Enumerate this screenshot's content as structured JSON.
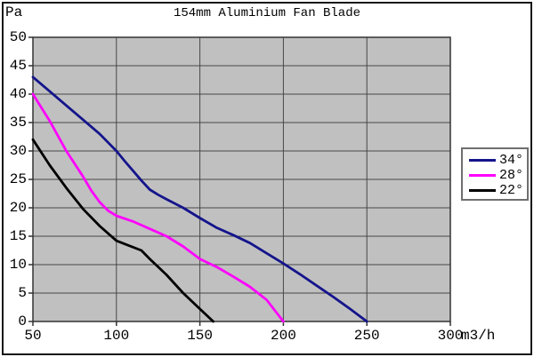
{
  "title": "154mm Aluminium Fan Blade",
  "colors": {
    "plot_background": "#c0c0c0",
    "gridline": "#474747",
    "plot_border": "#333333",
    "legend_border": "#6f6f6f",
    "frame_border": "#151515"
  },
  "chart_data": {
    "type": "line",
    "title": "154mm Aluminium Fan Blade",
    "xlabel": "m3/h",
    "ylabel": "Pa",
    "xlim": [
      50,
      300
    ],
    "ylim": [
      0,
      50
    ],
    "x_ticks": [
      50,
      100,
      150,
      200,
      250,
      300
    ],
    "y_ticks": [
      0,
      5,
      10,
      15,
      20,
      25,
      30,
      35,
      40,
      45,
      50
    ],
    "grid": true,
    "legend_position": "right",
    "series": [
      {
        "name": "34°",
        "color": "#14148c",
        "points": [
          [
            50,
            43
          ],
          [
            60,
            40.5
          ],
          [
            70,
            38
          ],
          [
            80,
            35.5
          ],
          [
            90,
            33
          ],
          [
            100,
            30
          ],
          [
            105,
            28.2
          ],
          [
            110,
            26.5
          ],
          [
            115,
            24.8
          ],
          [
            120,
            23.2
          ],
          [
            125,
            22.3
          ],
          [
            130,
            21.5
          ],
          [
            140,
            20
          ],
          [
            150,
            18.2
          ],
          [
            160,
            16.5
          ],
          [
            170,
            15.2
          ],
          [
            180,
            13.8
          ],
          [
            190,
            12
          ],
          [
            200,
            10.2
          ],
          [
            210,
            8.3
          ],
          [
            220,
            6.3
          ],
          [
            230,
            4.3
          ],
          [
            240,
            2.2
          ],
          [
            250,
            0
          ]
        ]
      },
      {
        "name": "28°",
        "color": "#ff00ff",
        "points": [
          [
            50,
            40
          ],
          [
            60,
            35.3
          ],
          [
            70,
            30
          ],
          [
            80,
            25.5
          ],
          [
            85,
            23
          ],
          [
            90,
            21
          ],
          [
            95,
            19.5
          ],
          [
            100,
            18.6
          ],
          [
            110,
            17.6
          ],
          [
            120,
            16.3
          ],
          [
            130,
            15
          ],
          [
            140,
            13.2
          ],
          [
            150,
            11
          ],
          [
            160,
            9.6
          ],
          [
            170,
            7.9
          ],
          [
            180,
            6.1
          ],
          [
            190,
            3.8
          ],
          [
            200,
            0
          ]
        ]
      },
      {
        "name": "22°",
        "color": "#000000",
        "points": [
          [
            50,
            32
          ],
          [
            60,
            27.5
          ],
          [
            70,
            23.5
          ],
          [
            80,
            19.8
          ],
          [
            90,
            16.8
          ],
          [
            100,
            14.2
          ],
          [
            107,
            13.4
          ],
          [
            115,
            12.5
          ],
          [
            120,
            11
          ],
          [
            130,
            8.2
          ],
          [
            140,
            5
          ],
          [
            150,
            2.2
          ],
          [
            158,
            0
          ]
        ]
      }
    ]
  }
}
